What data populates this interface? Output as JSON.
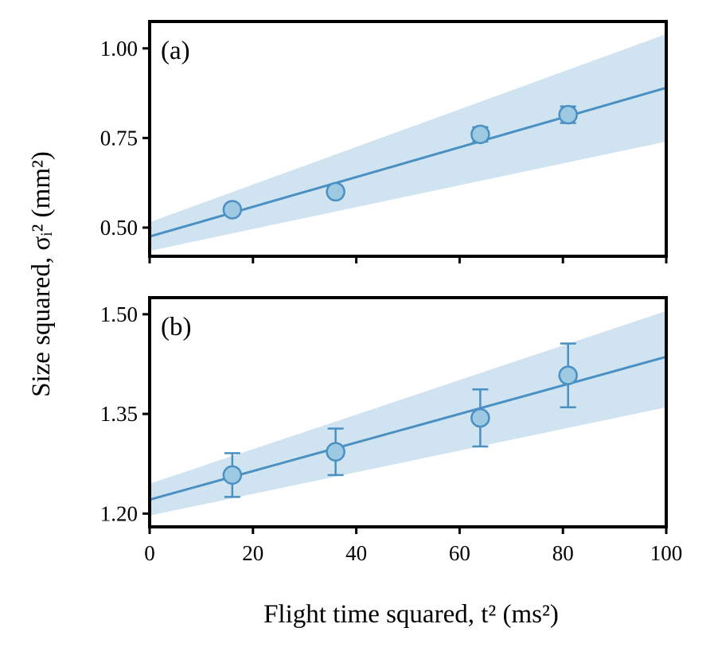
{
  "chart_data": {
    "type": "scatter",
    "xlabel": "Flight time squared, t² (ms²)",
    "ylabel": "Size squared, σᵢ² (mm²)",
    "xlim": [
      0,
      100
    ],
    "xticks": [
      "0",
      "20",
      "40",
      "60",
      "80",
      "100"
    ],
    "colors": {
      "line": "#4a90c2",
      "marker": "#9ec9e2",
      "band": "#cfe3f1"
    },
    "panels": [
      {
        "label": "(a)",
        "ylim": [
          0.42,
          1.075
        ],
        "yticks": [
          "0.50",
          "0.75",
          "1.00"
        ],
        "points": [
          {
            "x": 16,
            "y": 0.55,
            "err": 0.0
          },
          {
            "x": 36,
            "y": 0.6,
            "err": 0.0
          },
          {
            "x": 64,
            "y": 0.76,
            "err": 0.02
          },
          {
            "x": 81,
            "y": 0.815,
            "err": 0.023
          }
        ],
        "fit": {
          "x": [
            0,
            100
          ],
          "y": [
            0.475,
            0.89
          ]
        },
        "band": {
          "lower": [
            0.435,
            0.74
          ],
          "upper": [
            0.515,
            1.04
          ]
        }
      },
      {
        "label": "(b)",
        "ylim": [
          1.18,
          1.525
        ],
        "yticks": [
          "1.20",
          "1.35",
          "1.50"
        ],
        "points": [
          {
            "x": 16,
            "y": 1.258,
            "err": 0.033
          },
          {
            "x": 36,
            "y": 1.293,
            "err": 0.035
          },
          {
            "x": 64,
            "y": 1.344,
            "err": 0.043
          },
          {
            "x": 81,
            "y": 1.408,
            "err": 0.048
          }
        ],
        "fit": {
          "x": [
            0,
            100
          ],
          "y": [
            1.221,
            1.436
          ]
        },
        "band": {
          "lower": [
            1.197,
            1.36
          ],
          "upper": [
            1.245,
            1.505
          ]
        }
      }
    ]
  }
}
